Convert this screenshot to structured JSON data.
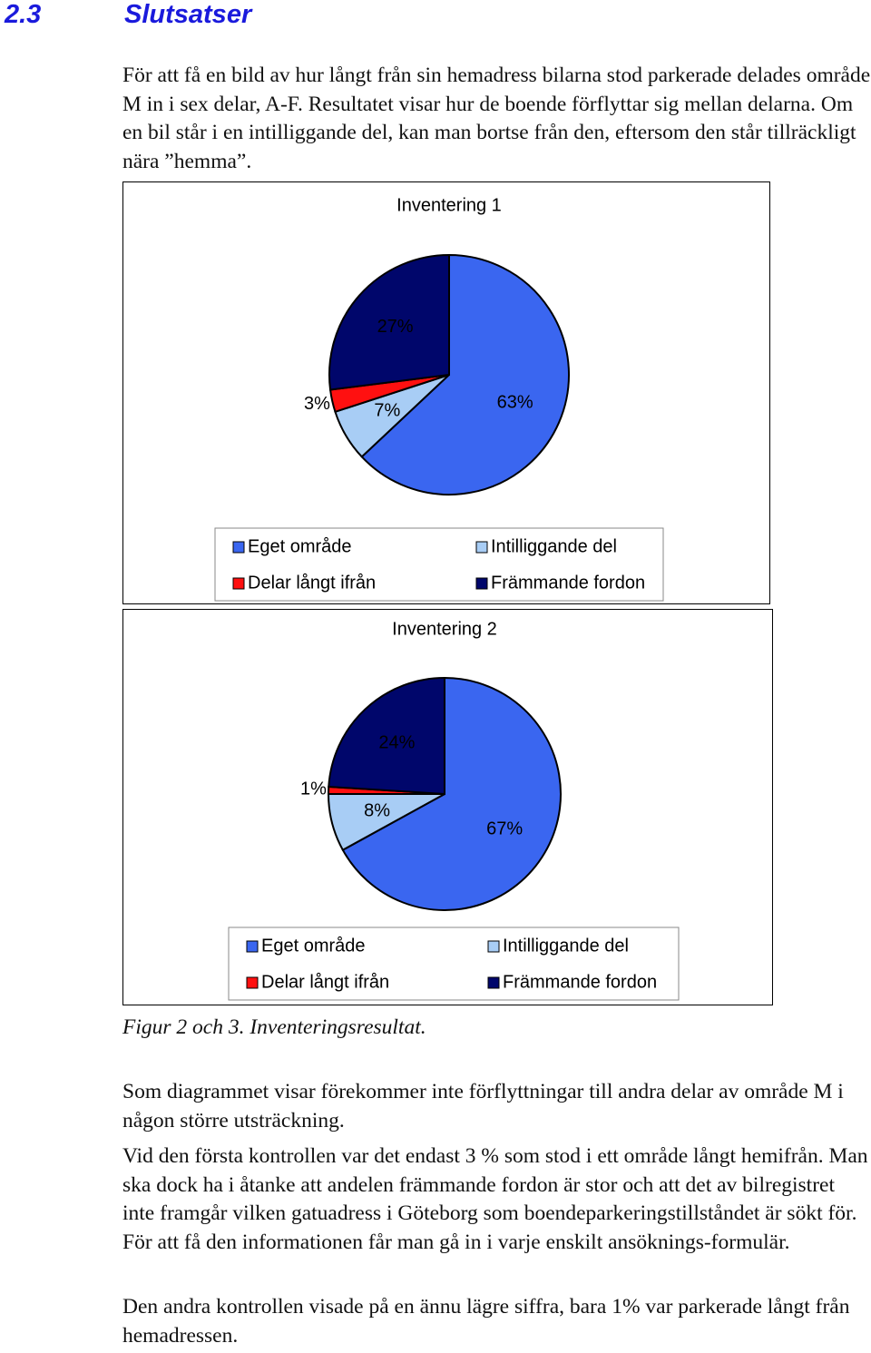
{
  "heading": {
    "number": "2.3",
    "title": "Slutsatser"
  },
  "paragraphs": [
    "För att få en bild av hur långt från sin hemadress bilarna stod parkerade delades område M in i sex delar, A-F. Resultatet visar hur de boende förflyttar sig mellan delarna. Om en bil står i en intilliggande del, kan man bortse från den, eftersom den står tillräckligt nära ”hemma”.",
    "Som diagrammet visar förekommer inte förflyttningar till andra delar av område M i någon större utsträckning.",
    "Vid den första kontrollen var det endast 3 % som stod i ett område långt hemifrån. Man ska dock ha i åtanke att andelen främmande fordon är stor och att det av bilregistret inte framgår vilken gatuadress i Göteborg som boendeparkeringstillståndet är sökt för. För att få den informationen får man gå in i varje enskilt ansöknings-formulär.",
    "Den andra kontrollen visade på en ännu lägre siffra, bara 1% var parkerade långt från hemadressen."
  ],
  "caption": "Figur 2 och 3. Inventeringsresultat.",
  "chart_data": [
    {
      "type": "pie",
      "title": "Inventering 1",
      "categories": [
        "Eget område",
        "Intilliggande del",
        "Delar långt ifrån",
        "Främmande fordon"
      ],
      "values": [
        63,
        7,
        3,
        27
      ],
      "value_labels": [
        "63%",
        "7%",
        "3%",
        "27%"
      ],
      "colors": [
        "#3a66f0",
        "#a8cdf5",
        "#ff1010",
        "#00066b"
      ]
    },
    {
      "type": "pie",
      "title": "Inventering 2",
      "categories": [
        "Eget område",
        "Intilliggande del",
        "Delar långt ifrån",
        "Främmande fordon"
      ],
      "values": [
        67,
        8,
        1,
        24
      ],
      "value_labels": [
        "67%",
        "8%",
        "1%",
        "24%"
      ],
      "colors": [
        "#3a66f0",
        "#a8cdf5",
        "#ff1010",
        "#00066b"
      ]
    }
  ]
}
